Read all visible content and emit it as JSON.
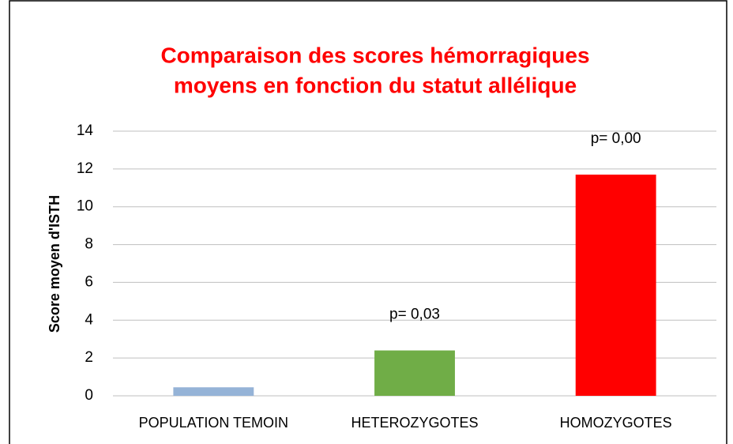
{
  "chart_data": {
    "type": "bar",
    "title": [
      "Comparaison des scores hémorragiques",
      "moyens en fonction du statut allélique"
    ],
    "y_label": "Score moyen d'ISTH",
    "categories": [
      "POPULATION TEMOIN",
      "HETEROZYGOTES",
      "HOMOZYGOTES"
    ],
    "values": [
      0.45,
      2.4,
      11.7
    ],
    "colors": [
      "#95b3d7",
      "#70ad47",
      "#ff0000"
    ],
    "annotations": [
      {
        "category": "HETEROZYGOTES",
        "text": "p= 0,03"
      },
      {
        "category": "HOMOZYGOTES",
        "text": "p= 0,00"
      }
    ],
    "ylim": [
      0,
      14
    ],
    "yticks": [
      0,
      2,
      4,
      6,
      8,
      10,
      12,
      14
    ],
    "grid": true
  }
}
